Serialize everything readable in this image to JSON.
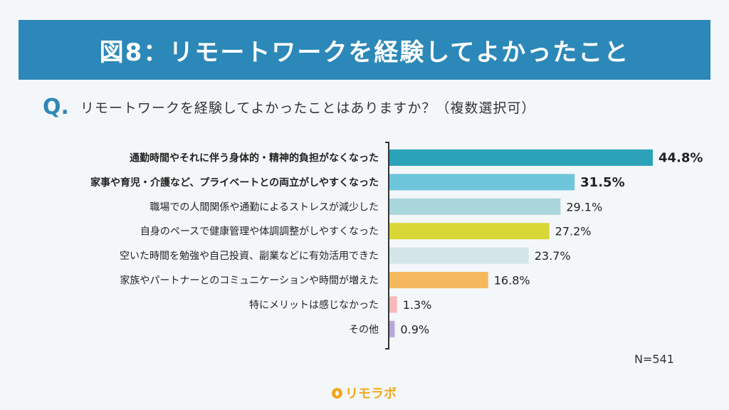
{
  "header": {
    "title": "図8：リモートワークを経験してよかったこと"
  },
  "question": {
    "mark": "Q.",
    "text": "リモートワークを経験してよかったことはありますか？（複数選択可）"
  },
  "sample_size": "N=541",
  "logo": {
    "text": "リモラボ"
  },
  "chart_data": {
    "type": "bar",
    "orientation": "horizontal",
    "categories": [
      "通勤時間やそれに伴う身体的・精神的負担がなくなった",
      "家事や育児・介護など、プライベートとの両立がしやすくなった",
      "職場での人間関係や通勤によるストレスが減少した",
      "自身のペースで健康管理や体調調整がしやすくなった",
      "空いた時間を勉強や自己投資、副業などに有効活用できた",
      "家族やパートナーとのコミュニケーションや時間が増えた",
      "特にメリットは感じなかった",
      "その他"
    ],
    "values": [
      44.8,
      31.5,
      29.1,
      27.2,
      23.7,
      16.8,
      1.3,
      0.9
    ],
    "value_labels": [
      "44.8%",
      "31.5%",
      "29.1%",
      "27.2%",
      "23.7%",
      "16.8%",
      "1.3%",
      "0.9%"
    ],
    "emphasized": [
      true,
      true,
      false,
      false,
      false,
      false,
      false,
      false
    ],
    "colors": [
      "#2aa3b8",
      "#6ec6dc",
      "#a9d5dc",
      "#d9d736",
      "#d3e5e8",
      "#f4b95f",
      "#f7b8bc",
      "#b6a7d8"
    ],
    "unit": "%",
    "xlabel": "",
    "ylabel": "",
    "xlim": [
      0,
      44.8
    ],
    "grid": false,
    "legend": "none"
  }
}
